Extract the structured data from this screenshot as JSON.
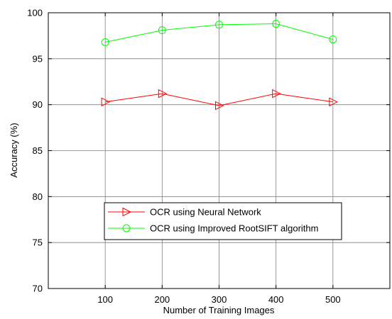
{
  "chart_data": {
    "type": "line",
    "title": "",
    "xlabel": "Number of Training Images",
    "ylabel": "Accuracy (%)",
    "xlim": [
      0,
      600
    ],
    "ylim": [
      70,
      100
    ],
    "xticks": [
      100,
      200,
      300,
      400,
      500
    ],
    "yticks": [
      70,
      75,
      80,
      85,
      90,
      95,
      100
    ],
    "grid": true,
    "legend_position": "bottom-center",
    "x": [
      100,
      200,
      300,
      400,
      500
    ],
    "series": [
      {
        "name": "OCR using Neural Network",
        "values": [
          90.3,
          91.2,
          89.9,
          91.2,
          90.3
        ],
        "color": "#ff0000",
        "marker": "triangle-right"
      },
      {
        "name": "OCR using Improved RootSIFT algorithm",
        "values": [
          96.8,
          98.1,
          98.7,
          98.8,
          97.1
        ],
        "color": "#00ff00",
        "marker": "circle"
      }
    ]
  }
}
